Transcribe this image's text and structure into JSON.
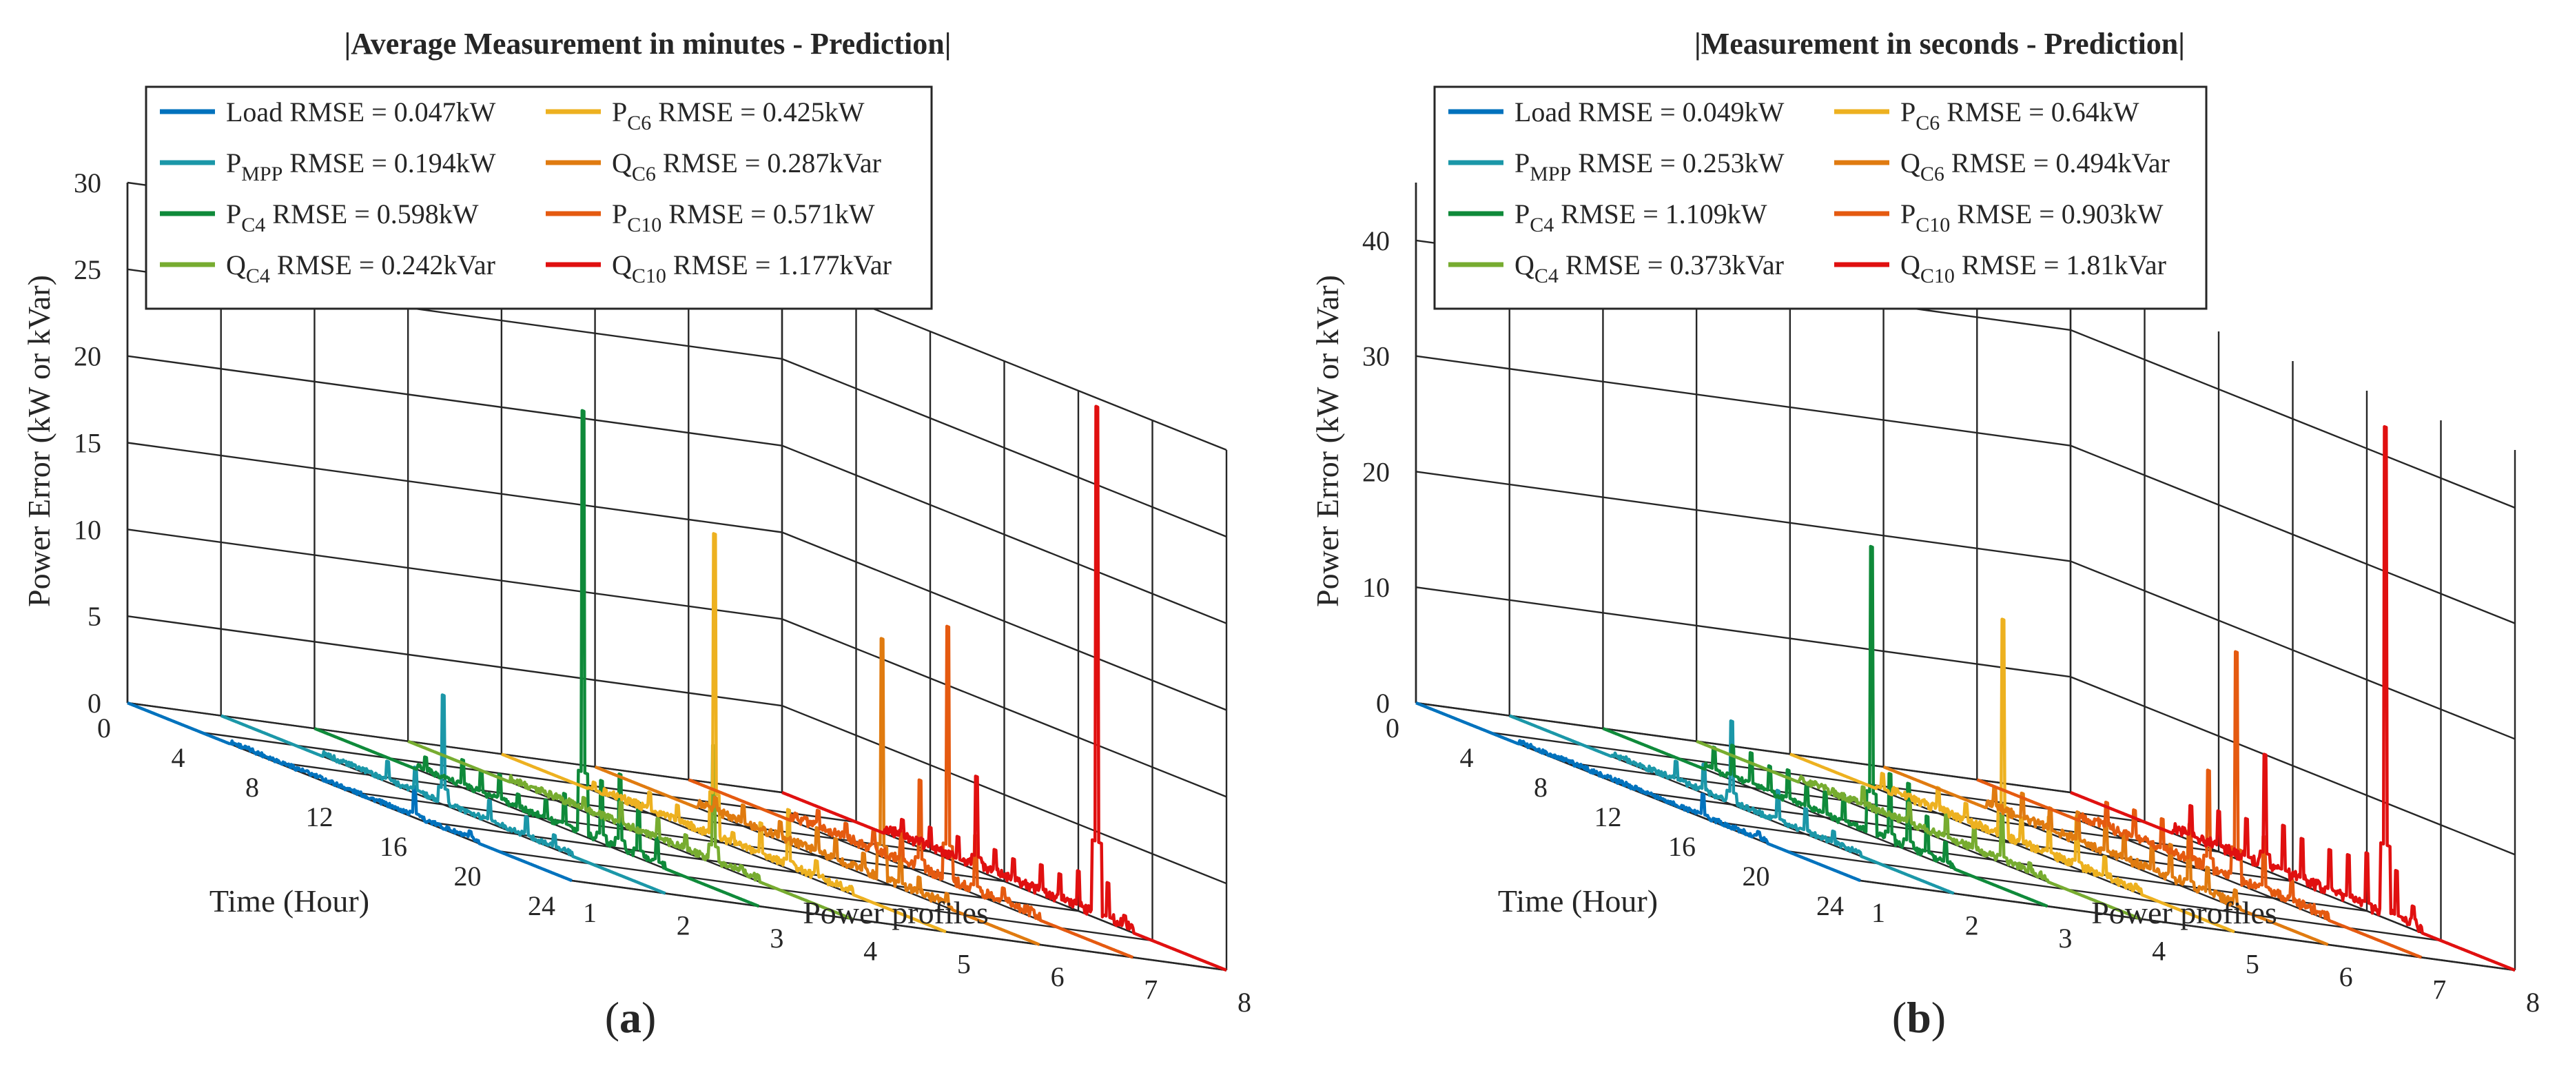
{
  "figure": {
    "panels": [
      {
        "tag": "a",
        "title": "|Average Measurement in minutes - Prediction|",
        "zlim": [
          0,
          30
        ],
        "zticks": [
          0,
          5,
          10,
          15,
          20,
          25,
          30
        ],
        "legend": [
          {
            "sym": "Load",
            "sub": "",
            "rmse": " RMSE = 0.047kW",
            "color": "#0072BD"
          },
          {
            "sym": "P",
            "sub": "MPP",
            "rmse": " RMSE = 0.194kW",
            "color": "#1B97A8"
          },
          {
            "sym": "P",
            "sub": "C4",
            "rmse": " RMSE = 0.598kW",
            "color": "#0F8A3A"
          },
          {
            "sym": "Q",
            "sub": "C4",
            "rmse": " RMSE = 0.242kVar",
            "color": "#77AC30"
          },
          {
            "sym": "P",
            "sub": "C6",
            "rmse": " RMSE = 0.425kW",
            "color": "#EDB120"
          },
          {
            "sym": "Q",
            "sub": "C6",
            "rmse": " RMSE = 0.287kVar",
            "color": "#E07B10"
          },
          {
            "sym": "P",
            "sub": "C10",
            "rmse": " RMSE = 0.571kW",
            "color": "#E55A10"
          },
          {
            "sym": "Q",
            "sub": "C10",
            "rmse": " RMSE = 1.177kVar",
            "color": "#E01010"
          }
        ]
      },
      {
        "tag": "b",
        "title": "|Measurement in seconds - Prediction|",
        "zlim": [
          0,
          45
        ],
        "zticks": [
          0,
          10,
          20,
          30,
          40
        ],
        "legend": [
          {
            "sym": "Load",
            "sub": "",
            "rmse": " RMSE = 0.049kW",
            "color": "#0072BD"
          },
          {
            "sym": "P",
            "sub": "MPP",
            "rmse": " RMSE = 0.253kW",
            "color": "#1B97A8"
          },
          {
            "sym": "P",
            "sub": "C4",
            "rmse": " RMSE = 1.109kW",
            "color": "#0F8A3A"
          },
          {
            "sym": "Q",
            "sub": "C4",
            "rmse": " RMSE = 0.373kVar",
            "color": "#77AC30"
          },
          {
            "sym": "P",
            "sub": "C6",
            "rmse": " RMSE = 0.64kW",
            "color": "#EDB120"
          },
          {
            "sym": "Q",
            "sub": "C6",
            "rmse": " RMSE = 0.494kVar",
            "color": "#E07B10"
          },
          {
            "sym": "P",
            "sub": "C10",
            "rmse": " RMSE = 0.903kW",
            "color": "#E55A10"
          },
          {
            "sym": "Q",
            "sub": "C10",
            "rmse": " RMSE = 1.81kVar",
            "color": "#E01010"
          }
        ]
      }
    ]
  },
  "chart_data": [
    {
      "type": "line",
      "title": "|Average Measurement in minutes - Prediction|",
      "xlabel": "Time (Hour)",
      "ylabel": "Power profiles",
      "zlabel": "Power Error (kW or kVar)",
      "xlim": [
        0,
        24
      ],
      "xticks": [
        0,
        4,
        8,
        12,
        16,
        20,
        24
      ],
      "ylim": [
        1,
        8
      ],
      "yticks": [
        1,
        2,
        3,
        4,
        5,
        6,
        7,
        8
      ],
      "zlim": [
        0,
        30
      ],
      "zticks": [
        0,
        5,
        10,
        15,
        20,
        25,
        30
      ],
      "grid": true,
      "legend_position": "top-left",
      "series": [
        {
          "name": "Load RMSE = 0.047kW",
          "profile": 1,
          "color": "#0072BD",
          "peaks": [
            [
              15.5,
              1.8
            ],
            [
              18.5,
              0.5
            ]
          ]
        },
        {
          "name": "PMPP RMSE = 0.194kW",
          "profile": 2,
          "color": "#1B97A8",
          "peaks": [
            [
              9,
              1.2
            ],
            [
              10.5,
              1.5
            ],
            [
              12,
              6.3
            ],
            [
              14.5,
              1.3
            ],
            [
              16.5,
              1.2
            ],
            [
              18,
              0.8
            ]
          ]
        },
        {
          "name": "PC4 RMSE = 0.598kW",
          "profile": 3,
          "color": "#0F8A3A",
          "peaks": [
            [
              6,
              0.9
            ],
            [
              8,
              1.6
            ],
            [
              9,
              1.4
            ],
            [
              10,
              1.6
            ],
            [
              11,
              0.9
            ],
            [
              12.5,
              1.2
            ],
            [
              13.5,
              2.0
            ],
            [
              14.5,
              24.5
            ],
            [
              15.5,
              3.6
            ],
            [
              16.5,
              4.4
            ],
            [
              17.5,
              3.2
            ],
            [
              18.5,
              1.6
            ]
          ]
        },
        {
          "name": "QC4 RMSE = 0.242kVar",
          "profile": 4,
          "color": "#77AC30",
          "peaks": [
            [
              9.5,
              0.8
            ],
            [
              11.5,
              1.4
            ],
            [
              13.5,
              1.3
            ],
            [
              15,
              1.0
            ],
            [
              16.5,
              6.8
            ],
            [
              18,
              0.5
            ]
          ]
        },
        {
          "name": "PC6 RMSE = 0.425kW",
          "profile": 5,
          "color": "#EDB120",
          "peaks": [
            [
              5,
              0.5
            ],
            [
              8,
              1.2
            ],
            [
              9.5,
              1.1
            ],
            [
              11.5,
              17.6
            ],
            [
              12.5,
              0.8
            ],
            [
              14,
              2.0
            ],
            [
              15.5,
              3.4
            ],
            [
              17,
              1.1
            ]
          ]
        },
        {
          "name": "QC6 RMSE = 0.287kVar",
          "profile": 6,
          "color": "#E07B10",
          "peaks": [
            [
              6.5,
              1.0
            ],
            [
              8,
              1.2
            ],
            [
              10,
              1.1
            ],
            [
              12,
              1.6
            ],
            [
              13,
              1.4
            ],
            [
              14.5,
              1.2
            ],
            [
              15.5,
              14.0
            ],
            [
              16.5,
              2.4
            ],
            [
              17.5,
              1.1
            ],
            [
              19,
              0.8
            ]
          ]
        },
        {
          "name": "PC10 RMSE = 0.571kW",
          "profile": 7,
          "color": "#E55A10",
          "peaks": [
            [
              7,
              1.2
            ],
            [
              8.5,
              1.1
            ],
            [
              10,
              1.3
            ],
            [
              11.5,
              1.9
            ],
            [
              12.5,
              5.3
            ],
            [
              14,
              14.8
            ],
            [
              15.5,
              3.4
            ],
            [
              17,
              1.0
            ]
          ]
        },
        {
          "name": "QC10 RMSE = 1.177kVar",
          "profile": 8,
          "color": "#E01010",
          "peaks": [
            [
              6.5,
              1.2
            ],
            [
              8,
              1.4
            ],
            [
              9.5,
              1.5
            ],
            [
              10.5,
              5.4
            ],
            [
              11.5,
              1.6
            ],
            [
              12.5,
              1.5
            ],
            [
              14,
              1.8
            ],
            [
              15,
              1.7
            ],
            [
              16,
              2.3
            ],
            [
              17,
              29.5
            ],
            [
              17.6,
              2.3
            ],
            [
              18.5,
              0.8
            ]
          ]
        }
      ]
    },
    {
      "type": "line",
      "title": "|Measurement in seconds - Prediction|",
      "xlabel": "Time (Hour)",
      "ylabel": "Power profiles",
      "zlabel": "Power Error (kW or kVar)",
      "xlim": [
        0,
        24
      ],
      "xticks": [
        0,
        4,
        8,
        12,
        16,
        20,
        24
      ],
      "ylim": [
        1,
        8
      ],
      "yticks": [
        1,
        2,
        3,
        4,
        5,
        6,
        7,
        8
      ],
      "zlim": [
        0,
        45
      ],
      "zticks": [
        0,
        10,
        20,
        30,
        40
      ],
      "grid": true,
      "legend_position": "top-left",
      "series": [
        {
          "name": "Load RMSE = 0.049kW",
          "profile": 1,
          "color": "#0072BD",
          "peaks": [
            [
              15.5,
              2.0
            ],
            [
              18.5,
              0.7
            ]
          ]
        },
        {
          "name": "PMPP RMSE = 0.253kW",
          "profile": 2,
          "color": "#1B97A8",
          "peaks": [
            [
              9,
              1.8
            ],
            [
              10.5,
              2.5
            ],
            [
              12,
              7.2
            ],
            [
              14.5,
              2.8
            ],
            [
              16,
              2.2
            ],
            [
              17.5,
              1.2
            ]
          ]
        },
        {
          "name": "PC4 RMSE = 1.109kW",
          "profile": 3,
          "color": "#0F8A3A",
          "peaks": [
            [
              6,
              2.2
            ],
            [
              7,
              3.0
            ],
            [
              8,
              3.0
            ],
            [
              9,
              2.5
            ],
            [
              10,
              2.8
            ],
            [
              11,
              2.0
            ],
            [
              12,
              2.2
            ],
            [
              13,
              2.6
            ],
            [
              14.5,
              25.0
            ],
            [
              15.5,
              6.0
            ],
            [
              16.5,
              5.8
            ],
            [
              17.5,
              3.6
            ],
            [
              18.5,
              2.0
            ]
          ]
        },
        {
          "name": "QC4 RMSE = 0.373kVar",
          "profile": 4,
          "color": "#77AC30",
          "peaks": [
            [
              9,
              1.8
            ],
            [
              11.5,
              2.0
            ],
            [
              13.5,
              2.4
            ],
            [
              15,
              2.0
            ],
            [
              16.5,
              4.2
            ],
            [
              18,
              1.0
            ]
          ]
        },
        {
          "name": "PC6 RMSE = 0.64kW",
          "profile": 5,
          "color": "#EDB120",
          "peaks": [
            [
              5,
              1.5
            ],
            [
              8,
              2.2
            ],
            [
              9.5,
              1.8
            ],
            [
              11.5,
              19.0
            ],
            [
              12.5,
              2.5
            ],
            [
              14,
              3.5
            ],
            [
              15.5,
              4.5
            ],
            [
              17,
              2.0
            ]
          ]
        },
        {
          "name": "QC6 RMSE = 0.494kVar",
          "profile": 6,
          "color": "#E07B10",
          "peaks": [
            [
              6,
              2.0
            ],
            [
              7.5,
              2.5
            ],
            [
              9,
              2.2
            ],
            [
              10.5,
              2.8
            ],
            [
              12,
              3.0
            ],
            [
              13,
              2.4
            ],
            [
              14.5,
              2.6
            ],
            [
              15.5,
              3.2
            ],
            [
              16.5,
              5.0
            ],
            [
              17.5,
              2.5
            ],
            [
              19,
              1.5
            ]
          ]
        },
        {
          "name": "PC10 RMSE = 0.903kW",
          "profile": 7,
          "color": "#E55A10",
          "peaks": [
            [
              7,
              2.5
            ],
            [
              8.5,
              2.8
            ],
            [
              10,
              3.0
            ],
            [
              11.5,
              3.5
            ],
            [
              12.5,
              8.8
            ],
            [
              14,
              20.0
            ],
            [
              15.5,
              5.0
            ],
            [
              17,
              2.2
            ]
          ]
        },
        {
          "name": "QC10 RMSE = 1.81kVar",
          "profile": 8,
          "color": "#E01010",
          "peaks": [
            [
              6.5,
              3.0
            ],
            [
              8,
              3.5
            ],
            [
              9.5,
              3.8
            ],
            [
              10.5,
              10.0
            ],
            [
              11.5,
              4.5
            ],
            [
              12.5,
              4.0
            ],
            [
              14,
              4.0
            ],
            [
              15,
              4.2
            ],
            [
              16,
              5.0
            ],
            [
              17,
              42.5
            ],
            [
              17.6,
              4.5
            ],
            [
              18.5,
              2.0
            ]
          ]
        }
      ]
    }
  ]
}
